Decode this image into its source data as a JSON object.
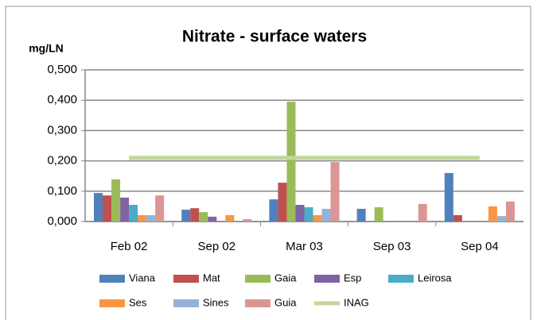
{
  "chart_data": {
    "type": "bar",
    "title": "Nitrate - surface waters",
    "y_label": "mg/LN",
    "categories": [
      "Feb 02",
      "Sep 02",
      "Mar 03",
      "Sep 03",
      "Sep 04"
    ],
    "series": [
      {
        "name": "Viana",
        "color": "#4f81bd",
        "values": [
          0.094,
          0.039,
          0.073,
          0.042,
          0.16
        ]
      },
      {
        "name": "Mat",
        "color": "#c0504d",
        "values": [
          0.086,
          0.044,
          0.128,
          0,
          0.021
        ]
      },
      {
        "name": "Gaia",
        "color": "#9bbb59",
        "values": [
          0.139,
          0.031,
          0.395,
          0.047,
          0
        ]
      },
      {
        "name": "Esp",
        "color": "#8064a2",
        "values": [
          0.079,
          0.016,
          0.055,
          0,
          0
        ]
      },
      {
        "name": "Leirosa",
        "color": "#4bacc6",
        "values": [
          0.055,
          0,
          0.047,
          0,
          0
        ]
      },
      {
        "name": "Ses",
        "color": "#f79646",
        "values": [
          0.021,
          0.021,
          0.021,
          0,
          0.05
        ]
      },
      {
        "name": "Sines",
        "color": "#95b3d7",
        "values": [
          0.021,
          0,
          0.042,
          0,
          0.018
        ]
      },
      {
        "name": "Guia",
        "color": "#da9694",
        "values": [
          0.086,
          0.008,
          0.196,
          0.058,
          0.066
        ]
      },
      {
        "name": "INAG",
        "color": "#c3d69b",
        "type": "line",
        "values": [
          0.21,
          0.21,
          0.21,
          0.21,
          0.21
        ]
      }
    ],
    "ylim": [
      0,
      0.5
    ],
    "yticks": [
      {
        "value": 0,
        "label": "0,000"
      },
      {
        "value": 0.1,
        "label": "0,100"
      },
      {
        "value": 0.2,
        "label": "0,200"
      },
      {
        "value": 0.3,
        "label": "0,300"
      },
      {
        "value": 0.4,
        "label": "0,400"
      },
      {
        "value": 0.5,
        "label": "0,500"
      }
    ],
    "grid": true
  }
}
